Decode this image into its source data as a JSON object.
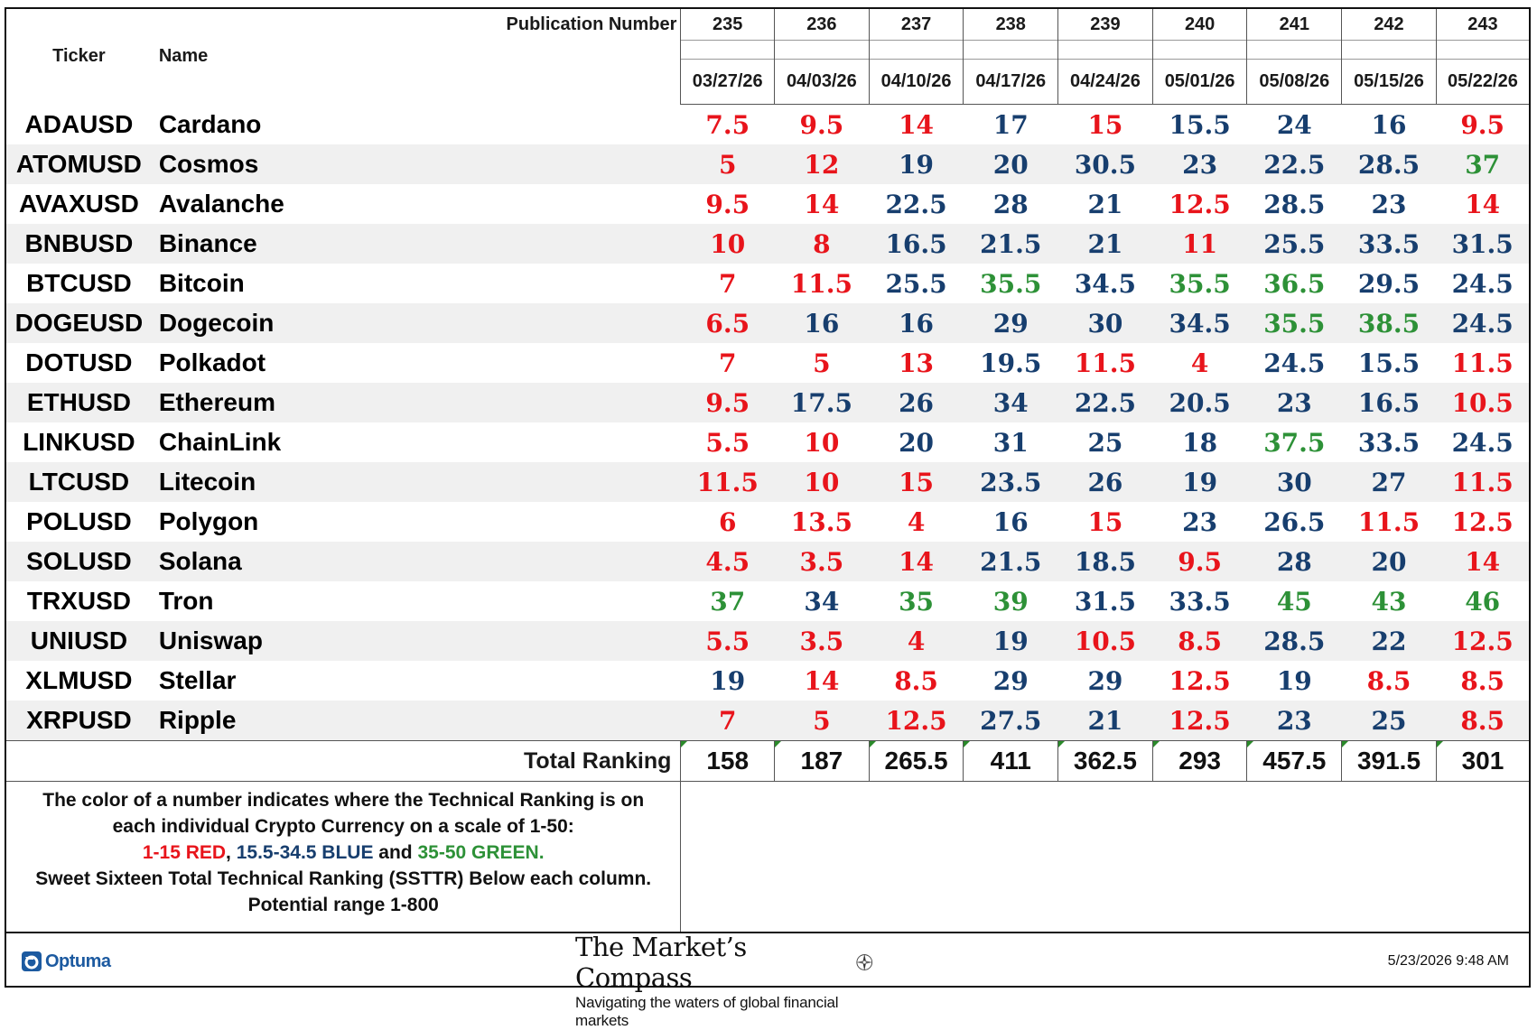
{
  "colors": {
    "red": "#e8141b",
    "blue": "#173e6e",
    "green": "#2d9137"
  },
  "header": {
    "pub_label": "Publication Number",
    "ticker_label": "Ticker",
    "name_label": "Name",
    "publications": [
      "235",
      "236",
      "237",
      "238",
      "239",
      "240",
      "241",
      "242",
      "243"
    ],
    "dates": [
      "03/27/26",
      "04/03/26",
      "04/10/26",
      "04/17/26",
      "04/24/26",
      "05/01/26",
      "05/08/26",
      "05/15/26",
      "05/22/26"
    ]
  },
  "chart_data": {
    "type": "table",
    "columns": [
      "03/27/26",
      "04/03/26",
      "04/10/26",
      "04/17/26",
      "04/24/26",
      "05/01/26",
      "05/08/26",
      "05/15/26",
      "05/22/26"
    ],
    "rows": [
      {
        "ticker": "ADAUSD",
        "name": "Cardano",
        "values": [
          "7.5",
          "9.5",
          "14",
          "17",
          "15",
          "15.5",
          "24",
          "16",
          "9.5"
        ]
      },
      {
        "ticker": "ATOMUSD",
        "name": "Cosmos",
        "values": [
          "5",
          "12",
          "19",
          "20",
          "30.5",
          "23",
          "22.5",
          "28.5",
          "37"
        ]
      },
      {
        "ticker": "AVAXUSD",
        "name": "Avalanche",
        "values": [
          "9.5",
          "14",
          "22.5",
          "28",
          "21",
          "12.5",
          "28.5",
          "23",
          "14"
        ]
      },
      {
        "ticker": "BNBUSD",
        "name": "Binance",
        "values": [
          "10",
          "8",
          "16.5",
          "21.5",
          "21",
          "11",
          "25.5",
          "33.5",
          "31.5"
        ]
      },
      {
        "ticker": "BTCUSD",
        "name": "Bitcoin",
        "values": [
          "7",
          "11.5",
          "25.5",
          "35.5",
          "34.5",
          "35.5",
          "36.5",
          "29.5",
          "24.5"
        ]
      },
      {
        "ticker": "DOGEUSD",
        "name": "Dogecoin",
        "values": [
          "6.5",
          "16",
          "16",
          "29",
          "30",
          "34.5",
          "35.5",
          "38.5",
          "24.5"
        ]
      },
      {
        "ticker": "DOTUSD",
        "name": "Polkadot",
        "values": [
          "7",
          "5",
          "13",
          "19.5",
          "11.5",
          "4",
          "24.5",
          "15.5",
          "11.5"
        ]
      },
      {
        "ticker": "ETHUSD",
        "name": "Ethereum",
        "values": [
          "9.5",
          "17.5",
          "26",
          "34",
          "22.5",
          "20.5",
          "23",
          "16.5",
          "10.5"
        ]
      },
      {
        "ticker": "LINKUSD",
        "name": "ChainLink",
        "values": [
          "5.5",
          "10",
          "20",
          "31",
          "25",
          "18",
          "37.5",
          "33.5",
          "24.5"
        ]
      },
      {
        "ticker": "LTCUSD",
        "name": "Litecoin",
        "values": [
          "11.5",
          "10",
          "15",
          "23.5",
          "26",
          "19",
          "30",
          "27",
          "11.5"
        ]
      },
      {
        "ticker": "POLUSD",
        "name": "Polygon",
        "values": [
          "6",
          "13.5",
          "4",
          "16",
          "15",
          "23",
          "26.5",
          "11.5",
          "12.5"
        ]
      },
      {
        "ticker": "SOLUSD",
        "name": "Solana",
        "values": [
          "4.5",
          "3.5",
          "14",
          "21.5",
          "18.5",
          "9.5",
          "28",
          "20",
          "14"
        ]
      },
      {
        "ticker": "TRXUSD",
        "name": "Tron",
        "values": [
          "37",
          "34",
          "35",
          "39",
          "31.5",
          "33.5",
          "45",
          "43",
          "46"
        ]
      },
      {
        "ticker": "UNIUSD",
        "name": "Uniswap",
        "values": [
          "5.5",
          "3.5",
          "4",
          "19",
          "10.5",
          "8.5",
          "28.5",
          "22",
          "12.5"
        ]
      },
      {
        "ticker": "XLMUSD",
        "name": "Stellar",
        "values": [
          "19",
          "14",
          "8.5",
          "29",
          "29",
          "12.5",
          "19",
          "8.5",
          "8.5"
        ]
      },
      {
        "ticker": "XRPUSD",
        "name": "Ripple",
        "values": [
          "7",
          "5",
          "12.5",
          "27.5",
          "21",
          "12.5",
          "23",
          "25",
          "8.5"
        ]
      }
    ],
    "total_label": "Total Ranking",
    "totals": [
      "158",
      "187",
      "265.5",
      "411",
      "362.5",
      "293",
      "457.5",
      "391.5",
      "301"
    ]
  },
  "legend": {
    "line1": "The color of a number indicates where the Technical Ranking is on",
    "line2": "each individual Crypto Currency on a scale of 1-50:",
    "red_text": "1-15 RED",
    "sep1": ", ",
    "blue_text": "15.5-34.5 BLUE",
    "sep2": " and ",
    "green_text": "35-50 GREEN",
    "sep3": ".",
    "line4": "Sweet Sixteen Total Technical Ranking (SSTTR) Below each column.",
    "line5": "Potential range 1-800"
  },
  "footer": {
    "optuma": "Optuma",
    "brand_title": "The Market’s Compass",
    "brand_sub": "Navigating the waters of global financial markets",
    "timestamp": "5/23/2026 9:48 AM"
  }
}
